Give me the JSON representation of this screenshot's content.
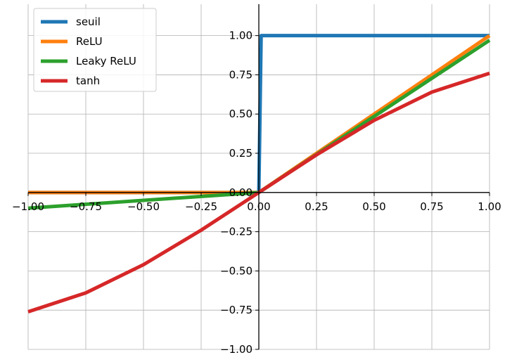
{
  "chart_data": {
    "type": "line",
    "title": "",
    "xlabel": "",
    "ylabel": "",
    "xlim": [
      -1.0,
      1.0
    ],
    "ylim": [
      -1.0,
      1.2
    ],
    "grid": true,
    "legend_position": "top-left",
    "spines": "centered axes through origin",
    "x_ticks": [
      "−1.00",
      "−0.75",
      "−0.50",
      "−0.25",
      "0.00",
      "0.25",
      "0.50",
      "0.75",
      "1.00"
    ],
    "y_ticks": [
      "−1.00",
      "−0.75",
      "−0.50",
      "−0.25",
      "0.00",
      "0.25",
      "0.50",
      "0.75",
      "1.00"
    ],
    "series": [
      {
        "name": "seuil",
        "color": "#1f77b4",
        "x": [
          -1.0,
          0.0,
          0.0,
          0.01,
          1.0
        ],
        "y": [
          0.0,
          0.0,
          0.0,
          1.0,
          1.0
        ]
      },
      {
        "name": "ReLU",
        "color": "#ff7f0e",
        "x": [
          -1.0,
          0.0,
          1.0
        ],
        "y": [
          0.0,
          0.0,
          1.0
        ]
      },
      {
        "name": "Leaky ReLU",
        "color": "#2ca02c",
        "x": [
          -1.0,
          0.0,
          1.0
        ],
        "y": [
          -0.1,
          0.0,
          0.97
        ]
      },
      {
        "name": "tanh",
        "color": "#d62728",
        "x": [
          -1.0,
          -0.75,
          -0.5,
          -0.25,
          0.0,
          0.25,
          0.5,
          0.75,
          1.0
        ],
        "y": [
          -0.76,
          -0.64,
          -0.46,
          -0.24,
          0.0,
          0.24,
          0.46,
          0.64,
          0.76
        ]
      }
    ]
  }
}
